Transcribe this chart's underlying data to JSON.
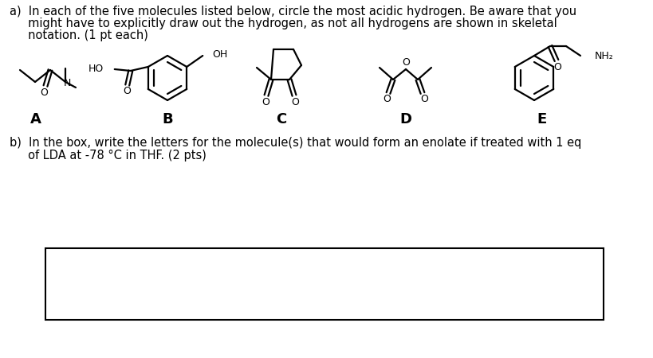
{
  "background_color": "#ffffff",
  "font_size_body": 10.5,
  "font_size_label": 13,
  "text_a1": "a)  In each of the five molecules listed below, circle the most acidic hydrogen. Be aware that you",
  "text_a2": "     might have to explicitly draw out the hydrogen, as not all hydrogens are shown in skeletal",
  "text_a3": "     notation. (1 pt each)",
  "text_b1": "b)  In the box, write the letters for the molecule(s) that would form an enolate if treated with 1 eq",
  "text_b2": "     of LDA at -78 °C in THF. (2 pts)"
}
